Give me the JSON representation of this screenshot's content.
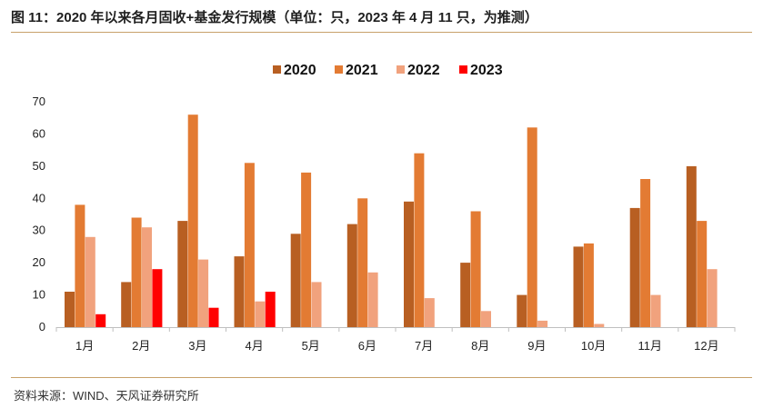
{
  "header": {
    "title": "图 11：2020 年以来各月固收+基金发行规模（单位：只，2023 年 4 月 11 只，为推测）"
  },
  "footer": {
    "source": "资料来源：WIND、天风证券研究所"
  },
  "colors": {
    "2020": "#b85f22",
    "2021": "#e37b33",
    "2022": "#f1a27d",
    "2023": "#ff0000",
    "rule": "#c8a16a"
  },
  "chart_data": {
    "type": "bar",
    "categories": [
      "1月",
      "2月",
      "3月",
      "4月",
      "5月",
      "6月",
      "7月",
      "8月",
      "9月",
      "10月",
      "11月",
      "12月"
    ],
    "series": [
      {
        "name": "2020",
        "values": [
          11,
          14,
          33,
          22,
          29,
          32,
          39,
          20,
          10,
          25,
          37,
          50
        ]
      },
      {
        "name": "2021",
        "values": [
          38,
          34,
          66,
          51,
          48,
          40,
          54,
          36,
          62,
          26,
          46,
          33
        ]
      },
      {
        "name": "2022",
        "values": [
          28,
          31,
          21,
          8,
          14,
          17,
          9,
          5,
          2,
          1,
          10,
          18
        ]
      },
      {
        "name": "2023",
        "values": [
          4,
          18,
          6,
          11,
          null,
          null,
          null,
          null,
          null,
          null,
          null,
          null
        ]
      }
    ],
    "ylim": [
      0,
      70
    ],
    "yticks": [
      0,
      10,
      20,
      30,
      40,
      50,
      60,
      70
    ],
    "grid": false,
    "legend": "top-center"
  }
}
